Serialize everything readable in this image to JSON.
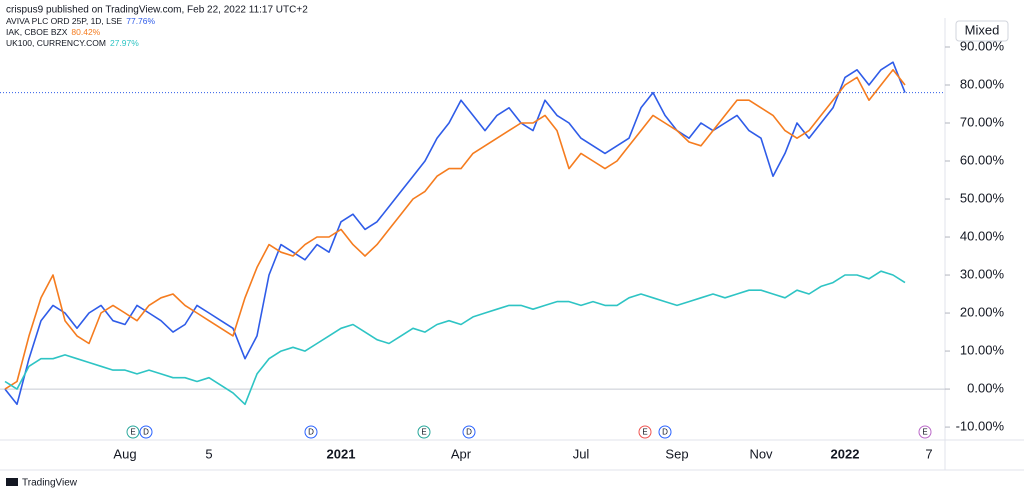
{
  "header": "crispus9 published on TradingView.com, Feb 22, 2022 11:17 UTC+2",
  "footer": "TradingView",
  "scale_mode": "Mixed",
  "events": [
    {
      "label": "E",
      "color": "#26a69a"
    },
    {
      "label": "D",
      "color": "#2962ff"
    },
    {
      "label": "D",
      "color": "#2962ff"
    },
    {
      "label": "E",
      "color": "#26a69a"
    },
    {
      "label": "D",
      "color": "#2962ff"
    },
    {
      "label": "E",
      "color": "#ef5350"
    },
    {
      "label": "D",
      "color": "#2962ff"
    },
    {
      "label": "E",
      "color": "#ba68c8"
    }
  ],
  "chart_data": {
    "type": "line",
    "categories": [
      null,
      null,
      null,
      null,
      null,
      null,
      null,
      null,
      null,
      null,
      "Aug",
      null,
      null,
      null,
      null,
      null,
      null,
      "5",
      null,
      null,
      null,
      null,
      null,
      null,
      null,
      null,
      null,
      null,
      "2021",
      null,
      null,
      null,
      null,
      null,
      null,
      null,
      null,
      null,
      "Apr",
      null,
      null,
      null,
      null,
      null,
      null,
      null,
      null,
      null,
      "Jul",
      null,
      null,
      null,
      null,
      null,
      null,
      null,
      "Sep",
      null,
      null,
      null,
      null,
      null,
      null,
      "Nov",
      null,
      null,
      null,
      null,
      null,
      null,
      "2022",
      null,
      null,
      null,
      null,
      null,
      null,
      "7"
    ],
    "series": [
      {
        "name": "AVIVA PLC ORD 25P, 1D, LSE",
        "last_label": "77.76%",
        "color": "#2f5ce8",
        "values": [
          0,
          -4,
          8,
          18,
          22,
          20,
          16,
          20,
          22,
          18,
          17,
          22,
          20,
          18,
          15,
          17,
          22,
          20,
          18,
          16,
          8,
          14,
          30,
          38,
          36,
          34,
          38,
          36,
          44,
          46,
          42,
          44,
          48,
          52,
          56,
          60,
          66,
          70,
          76,
          72,
          68,
          72,
          74,
          70,
          68,
          76,
          72,
          70,
          66,
          64,
          62,
          64,
          66,
          74,
          78,
          72,
          68,
          66,
          70,
          68,
          70,
          72,
          68,
          66,
          56,
          62,
          70,
          66,
          70,
          74,
          82,
          84,
          80,
          84,
          86,
          78,
          null,
          null
        ]
      },
      {
        "name": "IAK, CBOE BZX",
        "last_label": "80.42%",
        "color": "#f57c1f",
        "values": [
          0,
          2,
          14,
          24,
          30,
          18,
          14,
          12,
          20,
          22,
          20,
          18,
          22,
          24,
          25,
          22,
          20,
          18,
          16,
          14,
          24,
          32,
          38,
          36,
          35,
          38,
          40,
          40,
          42,
          38,
          35,
          38,
          42,
          46,
          50,
          52,
          56,
          58,
          58,
          62,
          64,
          66,
          68,
          70,
          70,
          72,
          68,
          58,
          62,
          60,
          58,
          60,
          64,
          68,
          72,
          70,
          68,
          65,
          64,
          68,
          72,
          76,
          76,
          74,
          72,
          68,
          66,
          68,
          72,
          76,
          80,
          82,
          76,
          80,
          84,
          80,
          null,
          null
        ]
      },
      {
        "name": "UK100, CURRENCY.COM",
        "last_label": "27.97%",
        "color": "#2ec4c4",
        "values": [
          2,
          0,
          6,
          8,
          8,
          9,
          8,
          7,
          6,
          5,
          5,
          4,
          5,
          4,
          3,
          3,
          2,
          3,
          1,
          -1,
          -4,
          4,
          8,
          10,
          11,
          10,
          12,
          14,
          16,
          17,
          15,
          13,
          12,
          14,
          16,
          15,
          17,
          18,
          17,
          19,
          20,
          21,
          22,
          22,
          21,
          22,
          23,
          23,
          22,
          23,
          22,
          22,
          24,
          25,
          24,
          23,
          22,
          23,
          24,
          25,
          24,
          25,
          26,
          26,
          25,
          24,
          26,
          25,
          27,
          28,
          30,
          30,
          29,
          31,
          30,
          28,
          null,
          null
        ]
      }
    ],
    "ylim": [
      -13.4,
      97.1
    ],
    "yticks": [
      {
        "value": 90,
        "label": "90.00%"
      },
      {
        "value": 80,
        "label": "80.00%"
      },
      {
        "value": 70,
        "label": "70.00%"
      },
      {
        "value": 60,
        "label": "60.00%"
      },
      {
        "value": 50,
        "label": "50.00%"
      },
      {
        "value": 40,
        "label": "40.00%"
      },
      {
        "value": 30,
        "label": "30.00%"
      },
      {
        "value": 20,
        "label": "20.00%"
      },
      {
        "value": 10,
        "label": "10.00%"
      },
      {
        "value": 0,
        "label": "0.00%"
      },
      {
        "value": -10,
        "label": "-10.00%"
      }
    ],
    "grid": false
  }
}
